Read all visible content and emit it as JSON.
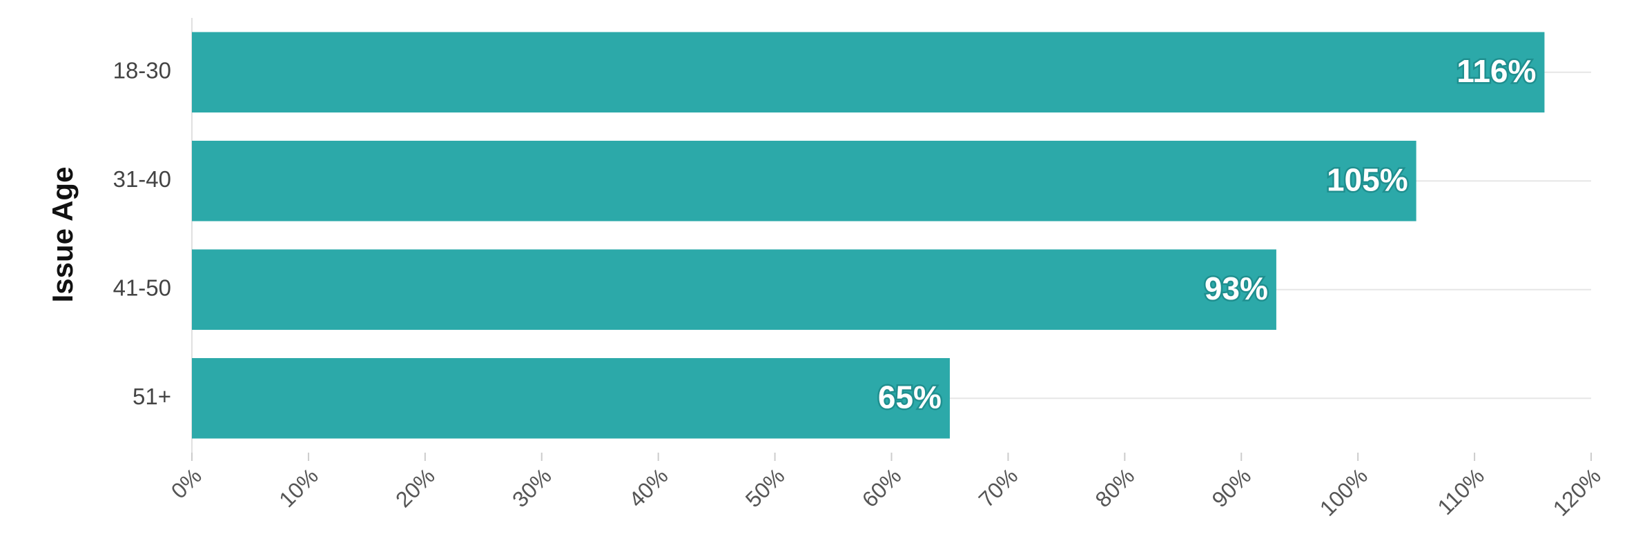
{
  "chart_data": {
    "type": "hbar",
    "y_label": "Issue Age",
    "categories": [
      "18-30",
      "31-40",
      "41-50",
      "51+"
    ],
    "values": [
      116,
      105,
      93,
      65
    ],
    "value_labels": [
      "116%",
      "105%",
      "93%",
      "65%"
    ],
    "color": "#2ca9a9",
    "xlim": [
      0,
      120
    ],
    "xticks": [
      {
        "value": 0,
        "label": "0%"
      },
      {
        "value": 10,
        "label": "10%"
      },
      {
        "value": 20,
        "label": "20%"
      },
      {
        "value": 30,
        "label": "30%"
      },
      {
        "value": 40,
        "label": "40%"
      },
      {
        "value": 50,
        "label": "50%"
      },
      {
        "value": 60,
        "label": "60%"
      },
      {
        "value": 70,
        "label": "70%"
      },
      {
        "value": 80,
        "label": "80%"
      },
      {
        "value": 90,
        "label": "90%"
      },
      {
        "value": 100,
        "label": "100%"
      },
      {
        "value": 110,
        "label": "110%"
      },
      {
        "value": 120,
        "label": "120%"
      }
    ],
    "grid": true
  }
}
